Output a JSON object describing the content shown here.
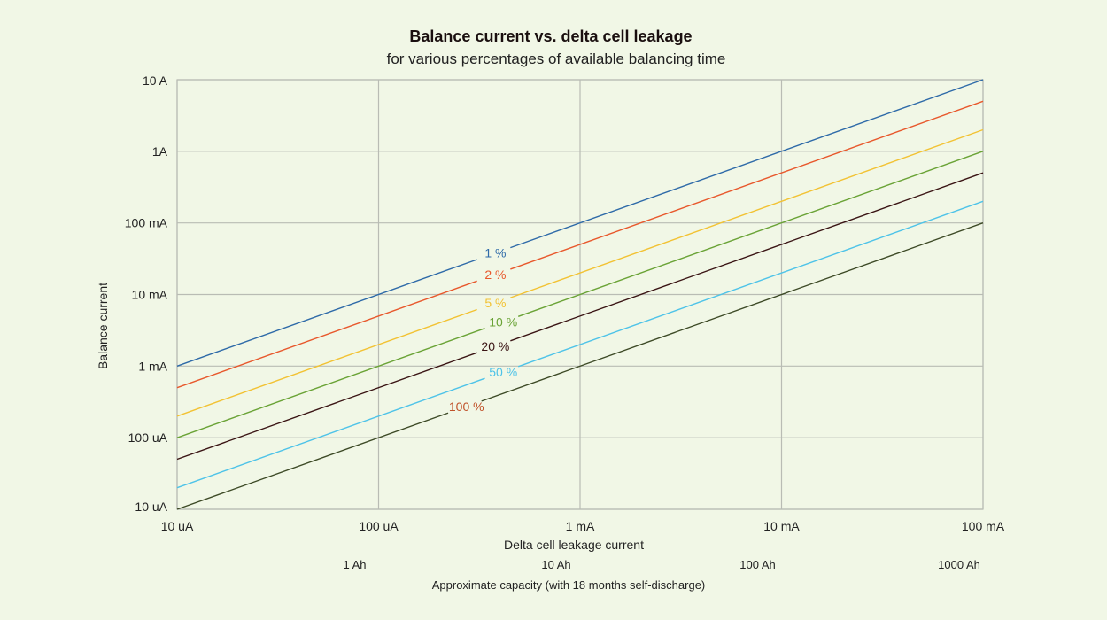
{
  "chart_data": {
    "type": "line",
    "title": "Balance current vs. delta cell leakage",
    "subtitle": "for various percentages of available balancing time",
    "xlabel": "Delta cell leakage current",
    "ylabel": "Balance current",
    "x_scale": "log",
    "y_scale": "log",
    "x_unit": "A",
    "y_unit": "A",
    "xlim": [
      1e-05,
      0.1
    ],
    "ylim": [
      1e-05,
      10
    ],
    "grid": true,
    "x_ticks": [
      {
        "value": 1e-05,
        "label": "10 uA"
      },
      {
        "value": 0.0001,
        "label": "100 uA"
      },
      {
        "value": 0.001,
        "label": "1 mA"
      },
      {
        "value": 0.01,
        "label": "10 mA"
      },
      {
        "value": 0.1,
        "label": "100 mA"
      }
    ],
    "y_ticks": [
      {
        "value": 10,
        "label": "10 A"
      },
      {
        "value": 1,
        "label": "1A"
      },
      {
        "value": 0.1,
        "label": "100 mA"
      },
      {
        "value": 0.01,
        "label": "10 mA"
      },
      {
        "value": 0.001,
        "label": "1 mA"
      },
      {
        "value": 0.0001,
        "label": "100 uA"
      },
      {
        "value": 1e-05,
        "label": "10 uA"
      }
    ],
    "secondary_x_axis": {
      "label": "Approximate capacity (with 18 months self-discharge)",
      "ticks": [
        {
          "value": 7.61e-05,
          "label": "1 Ah"
        },
        {
          "value": 0.000761,
          "label": "10 Ah"
        },
        {
          "value": 0.00761,
          "label": "100 Ah"
        },
        {
          "value": 0.0761,
          "label": "1000 Ah"
        }
      ]
    },
    "series": [
      {
        "name": "1 %",
        "color": "#2e6aa8",
        "x": [
          1e-05,
          0.1
        ],
        "y": [
          0.001,
          10
        ],
        "label_at": 0.00032
      },
      {
        "name": "2 %",
        "color": "#e8582c",
        "x": [
          1e-05,
          0.1
        ],
        "y": [
          0.0005,
          5
        ],
        "label_at": 0.00032
      },
      {
        "name": "5 %",
        "color": "#f2c233",
        "x": [
          1e-05,
          0.1
        ],
        "y": [
          0.0002,
          2
        ],
        "label_at": 0.00032
      },
      {
        "name": "10 %",
        "color": "#6aa336",
        "x": [
          1e-05,
          0.1
        ],
        "y": [
          0.0001,
          1
        ],
        "label_at": 0.00035
      },
      {
        "name": "20 %",
        "color": "#3a1414",
        "x": [
          1e-05,
          0.1
        ],
        "y": [
          5e-05,
          0.5
        ],
        "label_at": 0.00032
      },
      {
        "name": "50 %",
        "color": "#4ec3e8",
        "x": [
          1e-05,
          0.1
        ],
        "y": [
          2e-05,
          0.2
        ],
        "label_at": 0.00035
      },
      {
        "name": "100 %",
        "color": "#3d4a26",
        "x": [
          1e-05,
          0.1
        ],
        "y": [
          1e-05,
          0.1
        ],
        "label_at": 0.00023,
        "label_color": "#c0522a"
      }
    ]
  }
}
